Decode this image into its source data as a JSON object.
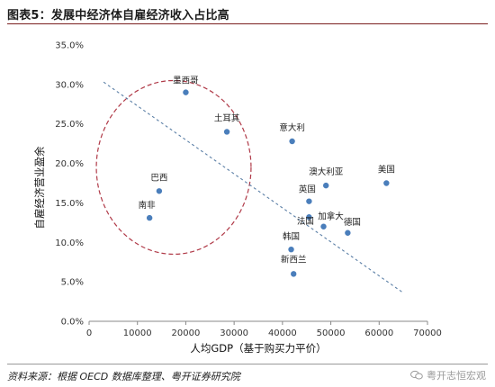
{
  "title": "图表5：发展中经济体自雇经济收入占比高",
  "source": "资料来源：根据 OECD 数据库整理、粤开证券研究院",
  "watermark": "粤开志恒宏观",
  "colors": {
    "point": "#4a7ebb",
    "trendline": "#5b7fa6",
    "circle": "#b03a48",
    "title_rule": "#7a1f1f"
  },
  "chart_data": {
    "type": "scatter",
    "xlabel": "人均GDP（基于购买力平价）",
    "ylabel": "自雇经济营业盈余",
    "xlim": [
      0,
      70000
    ],
    "ylim": [
      0,
      0.35
    ],
    "xticks": [
      "0",
      "10000",
      "20000",
      "30000",
      "40000",
      "50000",
      "60000",
      "70000"
    ],
    "yticks": [
      "0.0%",
      "5.0%",
      "10.0%",
      "15.0%",
      "20.0%",
      "25.0%",
      "30.0%",
      "35.0%"
    ],
    "grid": false,
    "points": [
      {
        "label": "墨西哥",
        "x": 20000,
        "y": 0.29
      },
      {
        "label": "土耳其",
        "x": 28500,
        "y": 0.24
      },
      {
        "label": "意大利",
        "x": 42000,
        "y": 0.228
      },
      {
        "label": "巴西",
        "x": 14500,
        "y": 0.165
      },
      {
        "label": "南非",
        "x": 12500,
        "y": 0.131
      },
      {
        "label": "澳大利亚",
        "x": 49000,
        "y": 0.172
      },
      {
        "label": "美国",
        "x": 61500,
        "y": 0.175
      },
      {
        "label": "英国",
        "x": 45500,
        "y": 0.152
      },
      {
        "label": "法国",
        "x": 45500,
        "y": 0.132
      },
      {
        "label": "加拿大",
        "x": 48500,
        "y": 0.12
      },
      {
        "label": "德国",
        "x": 53500,
        "y": 0.112
      },
      {
        "label": "韩国",
        "x": 41800,
        "y": 0.091
      },
      {
        "label": "新西兰",
        "x": 42300,
        "y": 0.06
      }
    ],
    "trendline": {
      "x": [
        3000,
        65000
      ],
      "y": [
        0.303,
        0.036
      ]
    },
    "annotations": [
      {
        "type": "dashed-ellipse",
        "cx": 17500,
        "cy": 0.195,
        "rx": 16000,
        "ry": 0.11
      }
    ]
  }
}
